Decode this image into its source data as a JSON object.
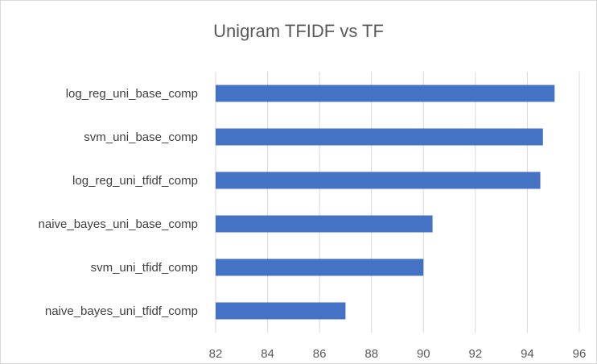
{
  "chart_data": {
    "type": "bar",
    "orientation": "horizontal",
    "title": "Unigram TFIDF vs TF",
    "xlabel": "",
    "ylabel": "",
    "categories": [
      "log_reg_uni_base_comp",
      "svm_uni_base_comp",
      "log_reg_uni_tfidf_comp",
      "naive_bayes_uni_base_comp",
      "svm_uni_tfidf_comp",
      "naive_bayes_uni_tfidf_comp"
    ],
    "values": [
      95.05,
      94.6,
      94.5,
      90.35,
      90.0,
      87.0
    ],
    "xlim": [
      82,
      96
    ],
    "xticks": [
      "82",
      "84",
      "86",
      "88",
      "90",
      "92",
      "94",
      "96"
    ],
    "grid": true,
    "legend": "none",
    "colors": {
      "bar": "#4472C4",
      "grid": "#D9D9D9",
      "title": "#595959",
      "tick_label": "#595959",
      "category_label": "#404040"
    }
  }
}
